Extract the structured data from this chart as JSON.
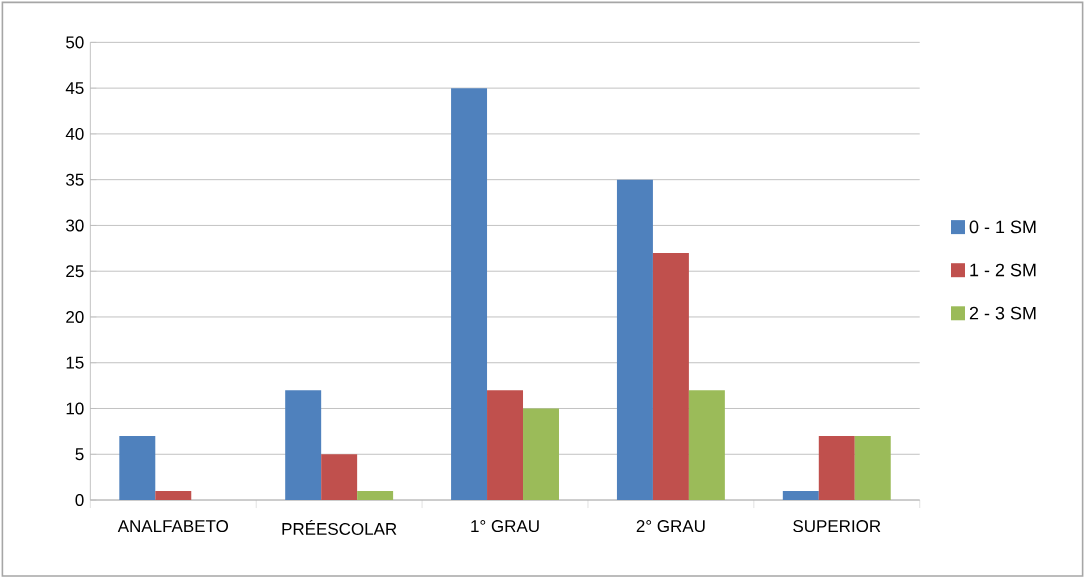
{
  "chart_data": {
    "type": "bar",
    "categories": [
      "ANALFABETO",
      "PRÉESCOLAR",
      "1° GRAU",
      "2° GRAU",
      "SUPERIOR"
    ],
    "series": [
      {
        "name": "0 - 1 SM",
        "color": "#4f81bd",
        "values": [
          7,
          12,
          45,
          35,
          1
        ]
      },
      {
        "name": "1 - 2 SM",
        "color": "#c0504d",
        "values": [
          1,
          5,
          12,
          27,
          7
        ]
      },
      {
        "name": "2 - 3 SM",
        "color": "#9bbb59",
        "values": [
          0,
          1,
          10,
          12,
          7
        ]
      }
    ],
    "ylim": [
      0,
      50
    ],
    "yticks": [
      0,
      5,
      10,
      15,
      20,
      25,
      30,
      35,
      40,
      45,
      50
    ],
    "grid": "y",
    "legend": "right"
  }
}
